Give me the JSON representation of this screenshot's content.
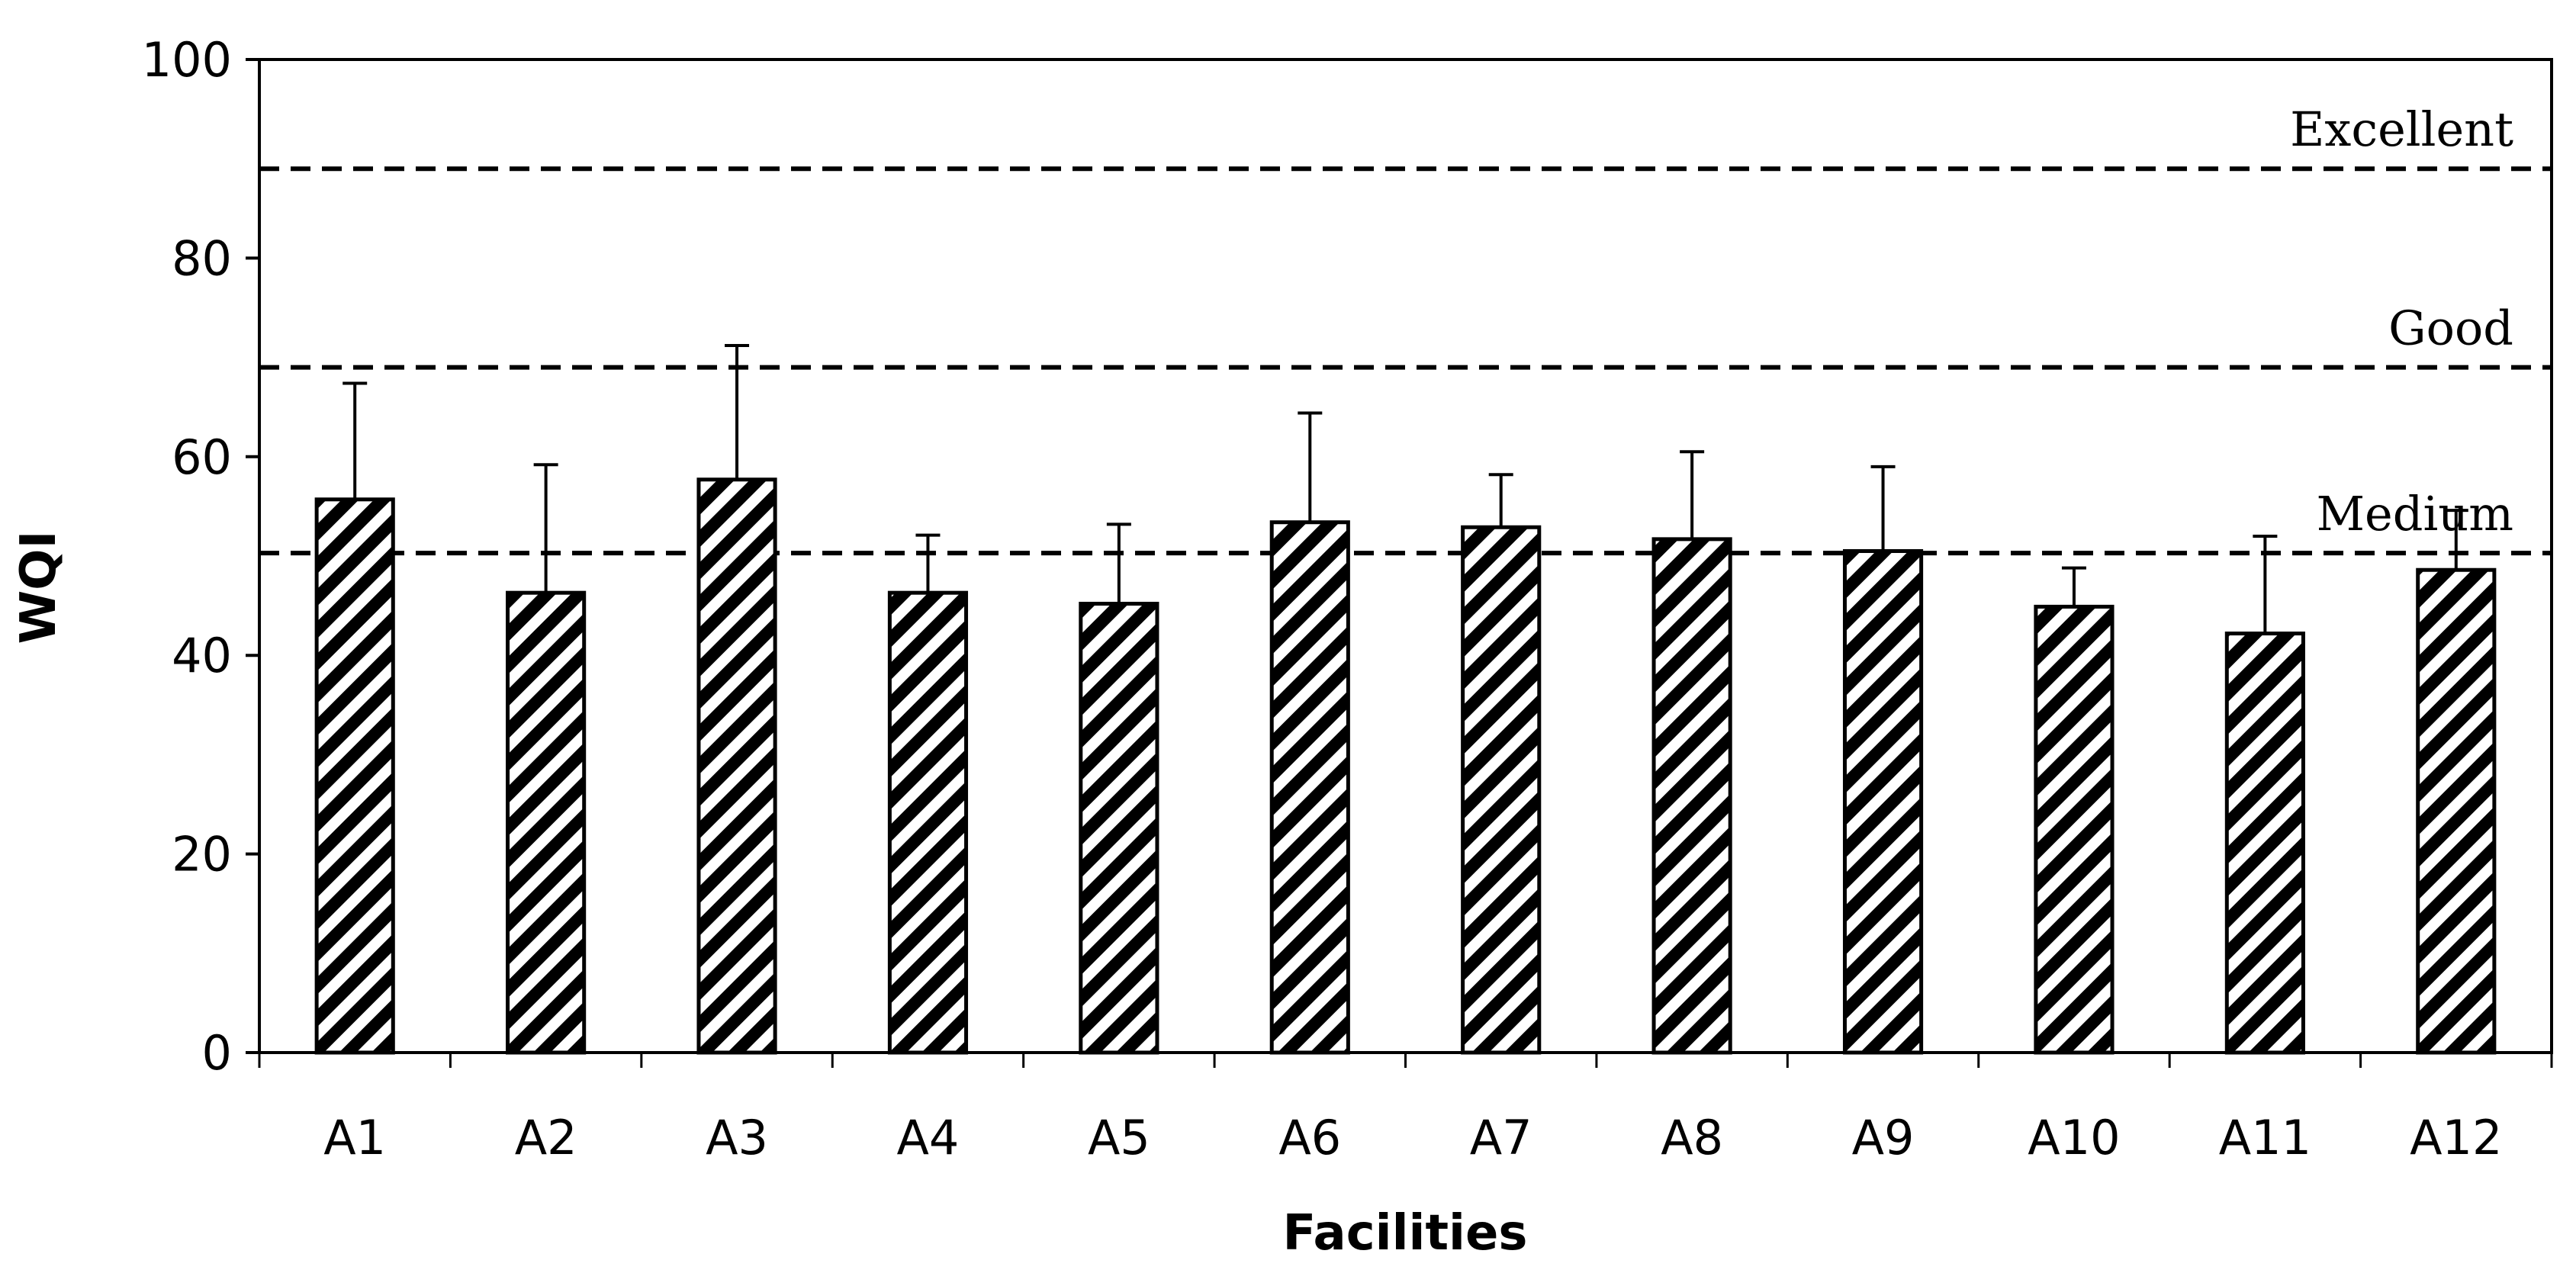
{
  "chart_data": {
    "type": "bar",
    "title": "",
    "xlabel": "Facilities",
    "ylabel": "WQI",
    "ylim": [
      0,
      100
    ],
    "yticks": [
      0,
      20,
      40,
      60,
      80,
      100
    ],
    "categories": [
      "A1",
      "A2",
      "A3",
      "A4",
      "A5",
      "A6",
      "A7",
      "A8",
      "A9",
      "A10",
      "A11",
      "A12"
    ],
    "values": [
      55.7,
      46.3,
      57.7,
      46.3,
      45.2,
      53.4,
      52.9,
      51.7,
      50.5,
      44.9,
      42.2,
      48.6
    ],
    "error_plus": [
      11.7,
      12.9,
      13.5,
      5.8,
      8.0,
      11.0,
      5.3,
      8.8,
      8.5,
      3.9,
      9.8,
      6.0
    ],
    "thresholds": [
      {
        "value": 89,
        "label": "Excellent"
      },
      {
        "value": 69,
        "label": "Good"
      },
      {
        "value": 50.3,
        "label": "Medium"
      }
    ],
    "pattern": "diagonal-hatch",
    "grid": false
  }
}
